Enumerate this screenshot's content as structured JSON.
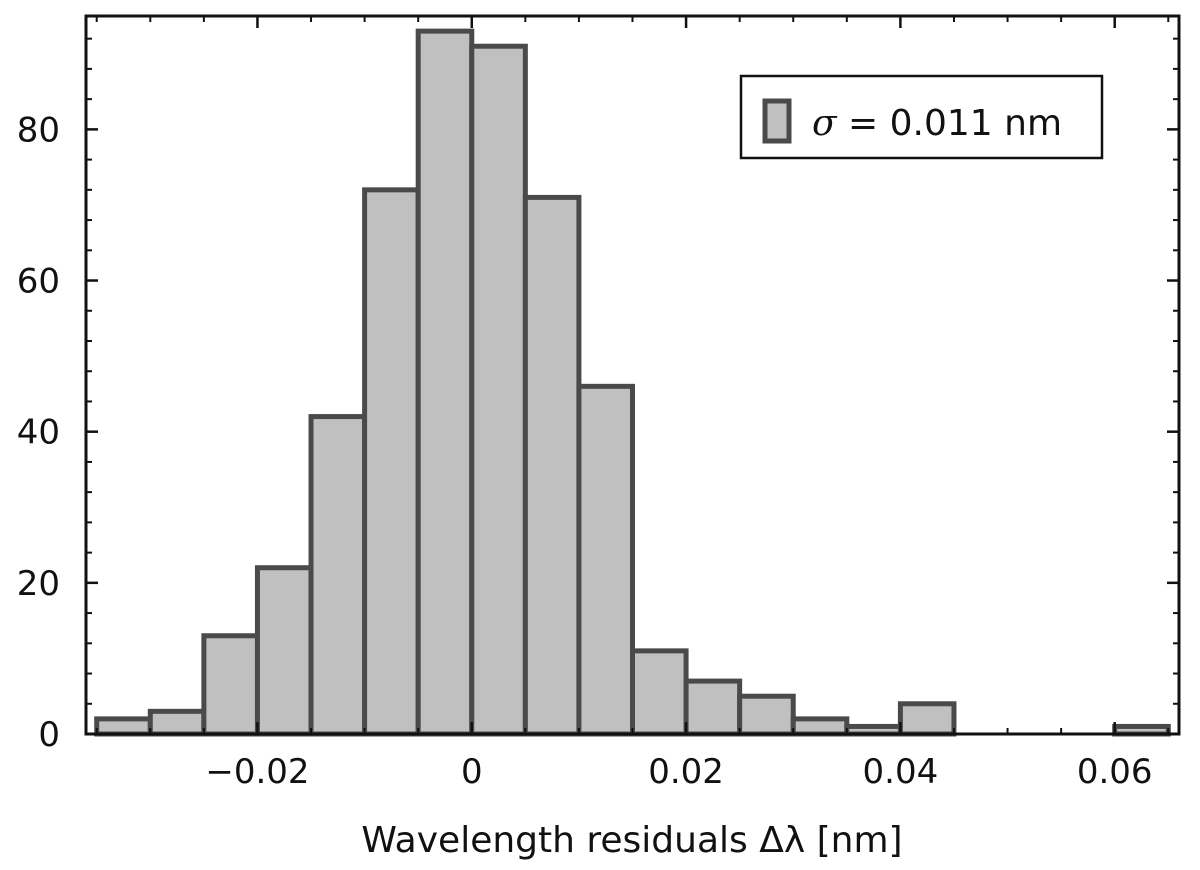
{
  "chart_data": {
    "type": "bar",
    "subtype": "histogram",
    "title": "",
    "xlabel": "Wavelength residuals  Δλ [nm]",
    "ylabel": "",
    "xlim": [
      -0.036,
      0.066
    ],
    "ylim": [
      0,
      95
    ],
    "bin_width": 0.005,
    "bin_edges_start": [
      -0.035,
      -0.03,
      -0.025,
      -0.02,
      -0.015,
      -0.01,
      -0.005,
      0.0,
      0.005,
      0.01,
      0.015,
      0.02,
      0.025,
      0.03,
      0.035,
      0.04,
      0.045,
      0.05,
      0.055,
      0.06
    ],
    "values": [
      2,
      3,
      13,
      22,
      42,
      72,
      93,
      91,
      71,
      46,
      11,
      7,
      5,
      2,
      1,
      4,
      0,
      0,
      0,
      1
    ],
    "xticks": [
      -0.02,
      0,
      0.02,
      0.04,
      0.06
    ],
    "xtick_labels": [
      "−0.02",
      "0",
      "0.02",
      "0.04",
      "0.06"
    ],
    "yticks": [
      0,
      20,
      40,
      60,
      80
    ],
    "ytick_labels": [
      "0",
      "20",
      "40",
      "60",
      "80"
    ],
    "legend": {
      "position": "top-right",
      "symbol": "σ",
      "label": " = 0.011 nm"
    },
    "colors": {
      "bar_fill": "#c0c0c0",
      "bar_edge": "#4a4a4a"
    }
  }
}
